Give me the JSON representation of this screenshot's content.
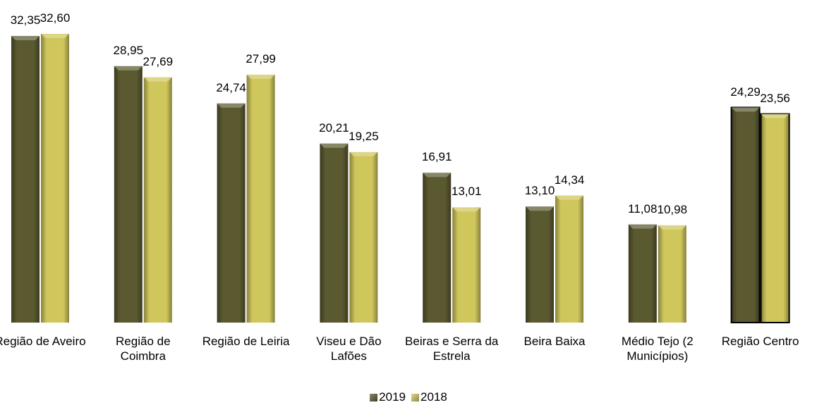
{
  "chart_data": {
    "type": "bar",
    "categories": [
      "Região de Aveiro",
      "Região de Coimbra",
      "Região de Leiria",
      "Viseu e Dão Lafões",
      "Beiras e Serra da Estrela",
      "Beira Baixa",
      "Médio Tejo (2 Municípios)",
      "Região Centro"
    ],
    "series": [
      {
        "name": "2019",
        "color": "#5b5930",
        "values": [
          32.35,
          28.95,
          24.74,
          20.21,
          16.91,
          13.1,
          11.08,
          24.29
        ],
        "value_labels": [
          "32,35",
          "28,95",
          "24,74",
          "20,21",
          "16,91",
          "13,10",
          "11,08",
          "24,29"
        ]
      },
      {
        "name": "2018",
        "color": "#cfc65c",
        "values": [
          32.6,
          27.69,
          27.99,
          19.25,
          13.01,
          14.34,
          10.98,
          23.56
        ],
        "value_labels": [
          "32,60",
          "27,69",
          "27,99",
          "19,25",
          "13,01",
          "14,34",
          "10,98",
          "23,56"
        ]
      }
    ],
    "legend": "bottom"
  }
}
